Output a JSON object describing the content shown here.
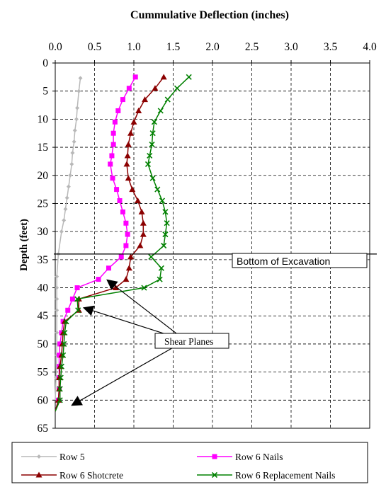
{
  "chart_data": {
    "type": "line",
    "title": "Cummulative Deflection (inches)",
    "xlabel": "",
    "ylabel": "Depth (feet)",
    "xlim": [
      0.0,
      4.0
    ],
    "ylim": [
      0,
      65
    ],
    "y_inverted": true,
    "x_axis_position": "top",
    "grid": true,
    "legend_placement": "bottom",
    "x_ticks": [
      "0.0",
      "0.5",
      "1.0",
      "1.5",
      "2.0",
      "2.5",
      "3.0",
      "3.5",
      "4.0"
    ],
    "y_ticks": [
      "0",
      "5",
      "10",
      "15",
      "20",
      "25",
      "30",
      "35",
      "40",
      "45",
      "50",
      "55",
      "60",
      "65"
    ],
    "series": [
      {
        "name": "Row 5",
        "color": "#b8b8b8",
        "marker": "diamond",
        "x": [
          0.32,
          0.3,
          0.28,
          0.27,
          0.25,
          0.24,
          0.22,
          0.21,
          0.19,
          0.17,
          0.15,
          0.13,
          0.11,
          0.08,
          0.04,
          0.02,
          0.02,
          0.02,
          0.02,
          0.02,
          0.02,
          0.01,
          0.0
        ],
        "y": [
          2.7,
          5,
          8,
          10,
          12,
          14,
          16,
          18,
          20,
          22,
          24,
          26,
          28,
          30,
          34,
          38,
          40,
          42,
          44,
          48,
          52,
          56,
          60
        ]
      },
      {
        "name": "Row 6 Nails",
        "color": "#ff00ff",
        "marker": "square",
        "x": [
          1.02,
          0.94,
          0.86,
          0.8,
          0.76,
          0.74,
          0.74,
          0.72,
          0.7,
          0.73,
          0.78,
          0.82,
          0.86,
          0.9,
          0.92,
          0.9,
          0.84,
          0.68,
          0.55,
          0.28,
          0.22,
          0.16,
          0.1,
          0.08,
          0.06,
          0.05,
          0.05,
          0.05,
          0.05,
          0.04,
          0.0
        ],
        "y": [
          2.5,
          4.5,
          6.5,
          8.5,
          10.5,
          12.5,
          14.5,
          16.5,
          18,
          20.5,
          22.5,
          24.5,
          26.5,
          28.5,
          30.5,
          32.5,
          34.5,
          36.5,
          38.5,
          40,
          42,
          44,
          46,
          48,
          50,
          52,
          54,
          56,
          58,
          60,
          62
        ]
      },
      {
        "name": "Row 6 Shotcrete",
        "color": "#8b0000",
        "marker": "triangle",
        "x": [
          1.38,
          1.27,
          1.14,
          1.06,
          1.0,
          0.96,
          0.93,
          0.92,
          0.91,
          0.93,
          0.98,
          1.05,
          1.1,
          1.12,
          1.12,
          1.08,
          0.96,
          0.94,
          0.9,
          0.77,
          0.3,
          0.3,
          0.12,
          0.1,
          0.09,
          0.08,
          0.06,
          0.05,
          0.05,
          0.04,
          0.0
        ],
        "y": [
          2.5,
          4.5,
          6.5,
          8.5,
          10.5,
          12.5,
          14.5,
          16.5,
          18,
          20.5,
          22.5,
          24.5,
          26.5,
          28.5,
          30.5,
          32.5,
          34.5,
          36.5,
          38.5,
          40,
          42,
          44,
          46,
          48,
          50,
          52,
          54,
          56,
          58,
          60,
          62
        ]
      },
      {
        "name": "Row 6 Replacement Nails",
        "color": "#008000",
        "marker": "x",
        "x": [
          1.7,
          1.55,
          1.43,
          1.34,
          1.26,
          1.24,
          1.23,
          1.2,
          1.18,
          1.24,
          1.3,
          1.36,
          1.4,
          1.42,
          1.4,
          1.38,
          1.22,
          1.35,
          1.33,
          1.13,
          0.28,
          0.29,
          0.14,
          0.12,
          0.11,
          0.1,
          0.08,
          0.07,
          0.06,
          0.06,
          0.0
        ],
        "y": [
          2.5,
          4.5,
          6.5,
          8.5,
          10.5,
          12.5,
          14.5,
          16.5,
          18,
          20.5,
          22.5,
          24.5,
          26.5,
          28.5,
          30.5,
          32.5,
          34.5,
          36.5,
          38.5,
          40,
          42,
          44,
          46,
          48,
          50,
          52,
          54,
          56,
          58,
          60,
          62
        ]
      }
    ],
    "annotations": {
      "excavation": {
        "label": "Bottom of Excavation",
        "depth": 34
      },
      "shear": {
        "label": "Shear Planes",
        "targets": [
          {
            "x": 0.65,
            "y": 38.5
          },
          {
            "x": 0.35,
            "y": 43.5
          },
          {
            "x": 0.2,
            "y": 61
          }
        ]
      }
    }
  }
}
